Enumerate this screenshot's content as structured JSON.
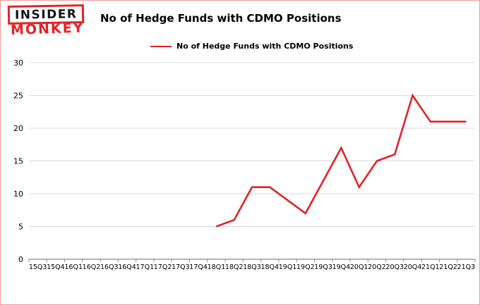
{
  "logo": {
    "line1": "INSIDER",
    "line2": "MONKEY"
  },
  "header": {
    "title": "No of Hedge Funds with CDMO Positions"
  },
  "legend": {
    "label": "No of Hedge Funds with CDMO Positions",
    "color": "#e32227"
  },
  "colors": {
    "accent_red": "#e32227",
    "gridline": "#d9d9d9",
    "axis": "#898989",
    "frame_border": "#ef9a9a"
  },
  "chart_data": {
    "type": "line",
    "title": "No of Hedge Funds with CDMO Positions",
    "legend_position": "top",
    "grid": true,
    "xlabel": "",
    "ylabel": "",
    "ylim": [
      0,
      30
    ],
    "ytick_interval": 5,
    "line_color": "#e32227",
    "categories": [
      "15Q3",
      "15Q4",
      "16Q1",
      "16Q2",
      "16Q3",
      "16Q4",
      "17Q1",
      "17Q2",
      "17Q3",
      "17Q4",
      "18Q1",
      "18Q2",
      "18Q3",
      "18Q4",
      "19Q1",
      "19Q2",
      "19Q3",
      "19Q4",
      "20Q1",
      "20Q2",
      "20Q3",
      "20Q4",
      "21Q1",
      "21Q2",
      "21Q3"
    ],
    "values": [
      null,
      null,
      null,
      null,
      null,
      null,
      null,
      null,
      null,
      null,
      5,
      6,
      11,
      11,
      9,
      7,
      12,
      17,
      11,
      15,
      16,
      25,
      21,
      21,
      21
    ]
  }
}
